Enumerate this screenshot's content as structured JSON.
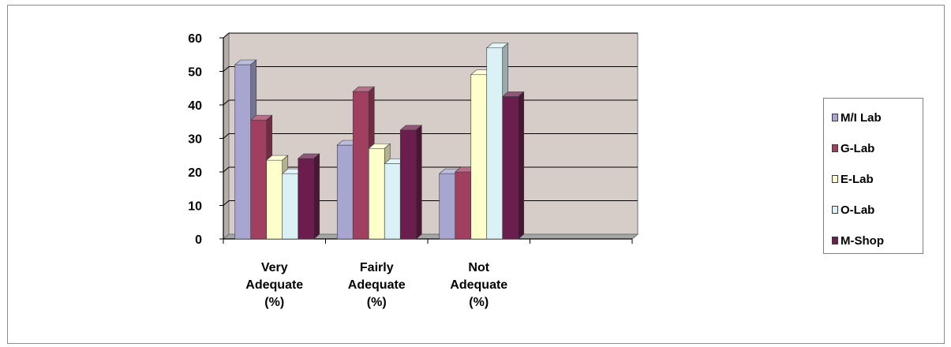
{
  "chart_data": {
    "type": "bar",
    "style": "3d-clustered-column",
    "categories": [
      [
        "Very",
        "Adequate",
        "(%)"
      ],
      [
        "Fairly",
        "Adequate",
        "(%)"
      ],
      [
        "Not",
        "Adequate",
        "(%)"
      ]
    ],
    "series": [
      {
        "name": "M/I Lab",
        "color": "#a6a6d0",
        "values": [
          52,
          28,
          19.5
        ]
      },
      {
        "name": "G-Lab",
        "color": "#a13f61",
        "values": [
          35.5,
          44,
          20
        ]
      },
      {
        "name": "E-Lab",
        "color": "#ffffcc",
        "values": [
          23.5,
          27,
          49
        ]
      },
      {
        "name": "O-Lab",
        "color": "#daf1f6",
        "values": [
          19.5,
          22.5,
          57
        ]
      },
      {
        "name": "M-Shop",
        "color": "#6b1e4d",
        "values": [
          24,
          32.5,
          42.5
        ]
      }
    ],
    "ylim": [
      0,
      60
    ],
    "yticks": [
      0,
      10,
      20,
      30,
      40,
      50,
      60
    ],
    "grid": true,
    "plot_background": "#d6ccc8",
    "legend_position": "right",
    "title": "",
    "xlabel": "",
    "ylabel": ""
  }
}
